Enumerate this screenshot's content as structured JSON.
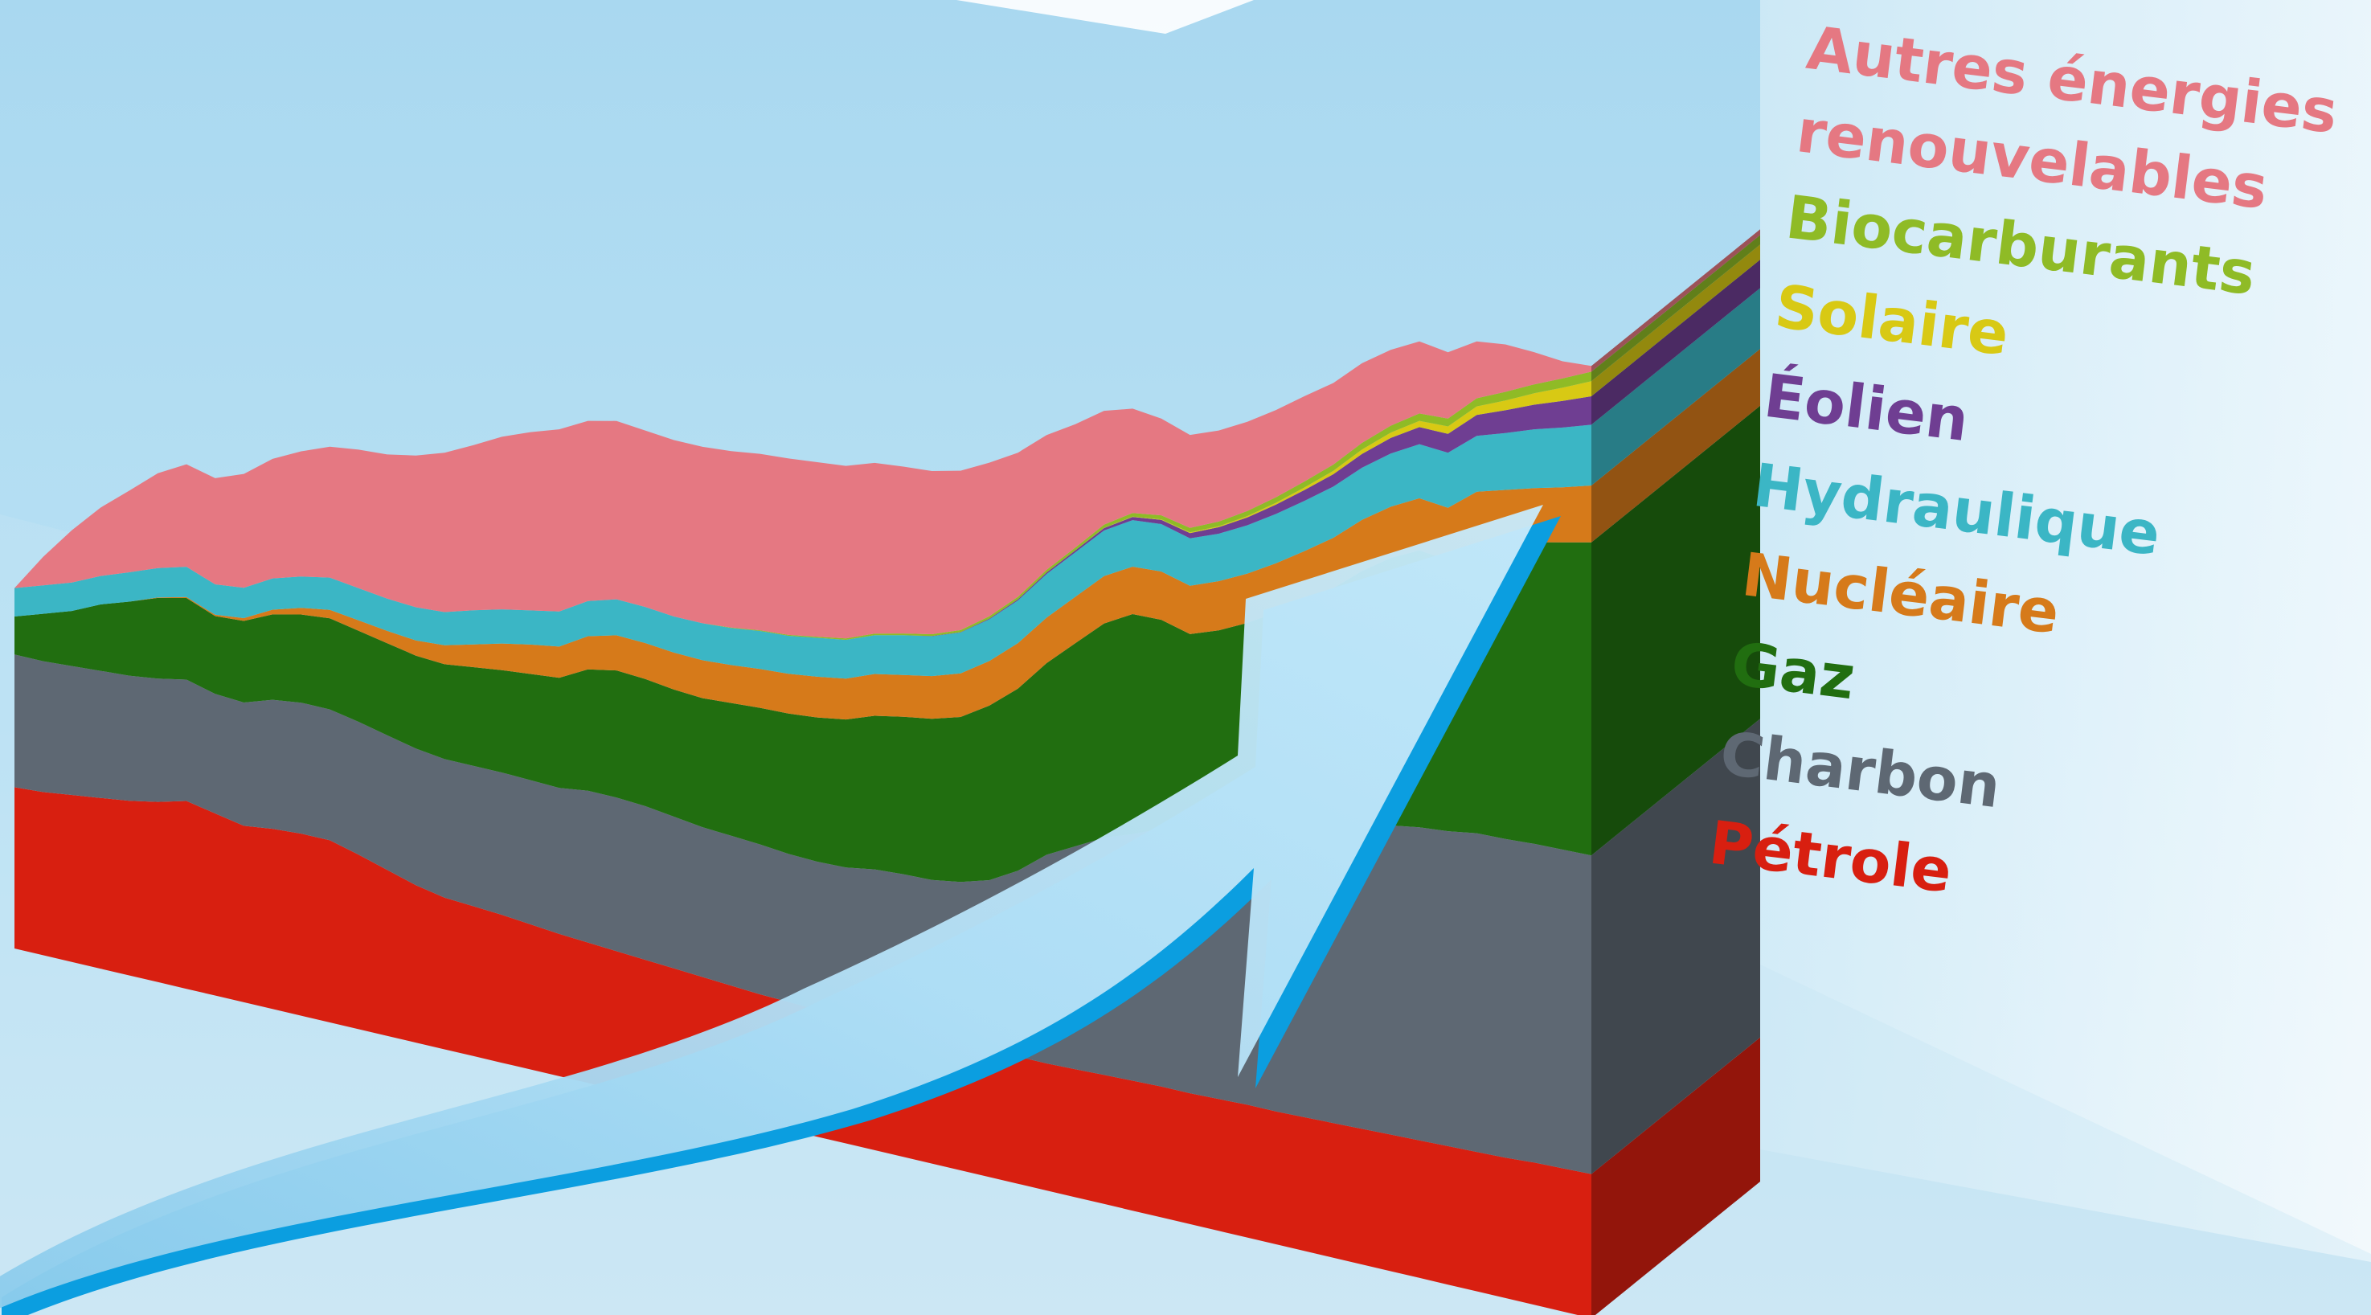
{
  "chart_data": {
    "type": "area",
    "stacked": true,
    "style": "3d-extruded",
    "title": "",
    "xlabel": "",
    "ylabel": "",
    "legend_position": "right",
    "grid": false,
    "x": [
      0,
      1,
      2,
      3,
      4,
      5,
      6,
      7,
      8,
      9,
      10,
      11,
      12,
      13,
      14,
      15,
      16,
      17,
      18,
      19,
      20,
      21,
      22,
      23,
      24,
      25,
      26,
      27,
      28,
      29,
      30,
      31,
      32,
      33,
      34,
      35,
      36,
      37,
      38,
      39,
      40,
      41,
      42,
      43,
      44,
      45,
      46,
      47,
      48,
      49,
      50,
      51,
      52,
      53,
      54,
      55
    ],
    "series": [
      {
        "name": "Pétrole",
        "color": "#d81f10",
        "values": [
          1.7,
          1.72,
          1.76,
          1.8,
          1.84,
          1.9,
          1.98,
          1.92,
          1.86,
          1.9,
          1.92,
          1.92,
          1.84,
          1.75,
          1.66,
          1.6,
          1.58,
          1.56,
          1.53,
          1.5,
          1.48,
          1.46,
          1.44,
          1.42,
          1.4,
          1.38,
          1.36,
          1.35,
          1.34,
          1.33,
          1.32,
          1.32,
          1.31,
          1.32,
          1.33,
          1.34,
          1.34,
          1.35,
          1.36,
          1.37,
          1.38,
          1.38,
          1.39,
          1.4,
          1.4,
          1.41,
          1.42,
          1.43,
          1.44,
          1.45,
          1.46,
          1.47,
          1.48,
          1.5,
          1.51,
          1.52
        ]
      },
      {
        "name": "Charbon",
        "color": "#5e6873",
        "values": [
          1.4,
          1.38,
          1.36,
          1.34,
          1.32,
          1.3,
          1.28,
          1.26,
          1.3,
          1.36,
          1.38,
          1.38,
          1.4,
          1.42,
          1.44,
          1.46,
          1.48,
          1.5,
          1.52,
          1.54,
          1.6,
          1.62,
          1.62,
          1.6,
          1.58,
          1.58,
          1.58,
          1.56,
          1.56,
          1.58,
          1.64,
          1.66,
          1.68,
          1.72,
          1.8,
          1.96,
          2.2,
          2.35,
          2.5,
          2.6,
          2.72,
          2.72,
          2.74,
          2.82,
          2.92,
          3.02,
          3.1,
          3.18,
          3.26,
          3.3,
          3.32,
          3.36,
          3.36,
          3.36,
          3.36,
          3.36
        ]
      },
      {
        "name": "Gaz",
        "color": "#216e10",
        "values": [
          0.4,
          0.5,
          0.58,
          0.7,
          0.78,
          0.85,
          0.86,
          0.82,
          0.86,
          0.9,
          0.93,
          0.96,
          0.96,
          0.97,
          0.98,
          1.0,
          1.04,
          1.08,
          1.12,
          1.16,
          1.28,
          1.34,
          1.34,
          1.34,
          1.36,
          1.4,
          1.44,
          1.48,
          1.52,
          1.56,
          1.62,
          1.66,
          1.7,
          1.74,
          1.84,
          1.92,
          2.02,
          2.14,
          2.26,
          2.32,
          2.2,
          2.12,
          2.2,
          2.26,
          2.34,
          2.42,
          2.54,
          2.7,
          2.82,
          2.92,
          2.86,
          3.04,
          3.12,
          3.18,
          3.24,
          3.3
        ]
      },
      {
        "name": "Nucléaire",
        "color": "#d67a1a",
        "values": [
          0,
          0,
          0,
          0,
          0,
          0.005,
          0.01,
          0.015,
          0.03,
          0.05,
          0.07,
          0.09,
          0.11,
          0.13,
          0.16,
          0.2,
          0.24,
          0.28,
          0.31,
          0.33,
          0.35,
          0.37,
          0.38,
          0.39,
          0.4,
          0.4,
          0.41,
          0.42,
          0.43,
          0.43,
          0.44,
          0.44,
          0.45,
          0.46,
          0.47,
          0.48,
          0.48,
          0.49,
          0.5,
          0.5,
          0.51,
          0.51,
          0.52,
          0.52,
          0.52,
          0.53,
          0.53,
          0.54,
          0.54,
          0.55,
          0.55,
          0.56,
          0.56,
          0.57,
          0.58,
          0.6
        ]
      },
      {
        "name": "Hydraulique",
        "color": "#3bb6c5",
        "values": [
          0.3,
          0.3,
          0.3,
          0.3,
          0.31,
          0.31,
          0.32,
          0.32,
          0.32,
          0.33,
          0.33,
          0.34,
          0.34,
          0.34,
          0.35,
          0.35,
          0.36,
          0.36,
          0.36,
          0.37,
          0.37,
          0.38,
          0.38,
          0.38,
          0.39,
          0.39,
          0.4,
          0.4,
          0.41,
          0.41,
          0.41,
          0.42,
          0.42,
          0.43,
          0.44,
          0.45,
          0.46,
          0.47,
          0.48,
          0.49,
          0.5,
          0.5,
          0.5,
          0.51,
          0.52,
          0.53,
          0.54,
          0.55,
          0.56,
          0.57,
          0.58,
          0.59,
          0.6,
          0.62,
          0.63,
          0.64
        ]
      },
      {
        "name": "Éolien",
        "color": "#6f3e92",
        "values": [
          0,
          0,
          0,
          0,
          0,
          0,
          0,
          0,
          0,
          0,
          0,
          0,
          0,
          0,
          0,
          0,
          0,
          0,
          0,
          0,
          0,
          0,
          0,
          0,
          0,
          0,
          0,
          0,
          0,
          0,
          0,
          0,
          0.002,
          0.004,
          0.008,
          0.012,
          0.016,
          0.02,
          0.026,
          0.034,
          0.044,
          0.056,
          0.068,
          0.082,
          0.098,
          0.114,
          0.13,
          0.146,
          0.164,
          0.18,
          0.2,
          0.22,
          0.24,
          0.26,
          0.28,
          0.3
        ]
      },
      {
        "name": "Solaire",
        "color": "#d8c914",
        "values": [
          0,
          0,
          0,
          0,
          0,
          0,
          0,
          0,
          0,
          0,
          0,
          0,
          0,
          0,
          0,
          0,
          0,
          0,
          0,
          0,
          0,
          0,
          0,
          0,
          0,
          0,
          0,
          0,
          0,
          0,
          0,
          0,
          0,
          0,
          0,
          0,
          0,
          0,
          0.002,
          0.004,
          0.006,
          0.008,
          0.01,
          0.014,
          0.02,
          0.028,
          0.036,
          0.046,
          0.056,
          0.066,
          0.078,
          0.09,
          0.104,
          0.12,
          0.14,
          0.16
        ]
      },
      {
        "name": "Biocarburants",
        "color": "#8fbb26",
        "values": [
          0,
          0,
          0,
          0,
          0,
          0,
          0,
          0,
          0,
          0,
          0,
          0,
          0,
          0,
          0,
          0,
          0,
          0,
          0,
          0,
          0,
          0,
          0,
          0,
          0,
          0.005,
          0.008,
          0.01,
          0.012,
          0.014,
          0.016,
          0.018,
          0.02,
          0.022,
          0.024,
          0.026,
          0.028,
          0.03,
          0.034,
          0.038,
          0.042,
          0.046,
          0.05,
          0.054,
          0.058,
          0.062,
          0.066,
          0.07,
          0.074,
          0.078,
          0.082,
          0.086,
          0.09,
          0.094,
          0.098,
          0.1
        ]
      },
      {
        "name": "Autres énergies renouvelables",
        "color": "#e57882",
        "values": [
          0,
          0.3,
          0.55,
          0.72,
          0.86,
          1.0,
          1.08,
          1.12,
          1.2,
          1.26,
          1.32,
          1.38,
          1.46,
          1.52,
          1.6,
          1.68,
          1.74,
          1.82,
          1.88,
          1.92,
          1.9,
          1.88,
          1.86,
          1.86,
          1.86,
          1.86,
          1.86,
          1.86,
          1.84,
          1.82,
          1.8,
          1.76,
          1.72,
          1.68,
          1.62,
          1.52,
          1.42,
          1.3,
          1.2,
          1.1,
          1.02,
          0.98,
          0.96,
          0.94,
          0.92,
          0.9,
          0.86,
          0.84,
          0.8,
          0.76,
          0.7,
          0.6,
          0.5,
          0.34,
          0.18,
          0.06
        ]
      }
    ]
  }
}
